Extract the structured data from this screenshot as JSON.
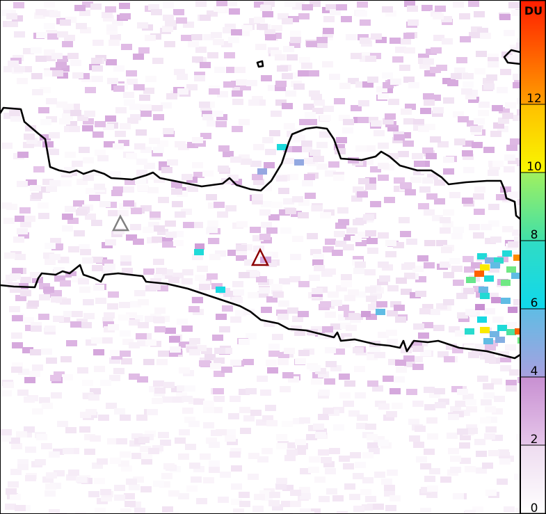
{
  "colorbar": {
    "unit": "DU",
    "range": [
      0,
      15
    ],
    "ticks": [
      "0",
      "2",
      "4",
      "6",
      "8",
      "10",
      "12"
    ],
    "stops": [
      {
        "value": 0,
        "color": "#ffffff"
      },
      {
        "value": 2,
        "color": "#eedcf0"
      },
      {
        "value": 2.01,
        "color": "#e6c6ea"
      },
      {
        "value": 4,
        "color": "#c890d2"
      },
      {
        "value": 4.01,
        "color": "#a8a0e0"
      },
      {
        "value": 6,
        "color": "#60bce4"
      },
      {
        "value": 6.01,
        "color": "#10d8ec"
      },
      {
        "value": 8,
        "color": "#30dcc4"
      },
      {
        "value": 8.01,
        "color": "#40e0a8"
      },
      {
        "value": 10,
        "color": "#a0f060"
      },
      {
        "value": 10.01,
        "color": "#f8f800"
      },
      {
        "value": 12,
        "color": "#ffc000"
      },
      {
        "value": 12.01,
        "color": "#ffa000"
      },
      {
        "value": 15,
        "color": "#ff2000"
      }
    ]
  },
  "markers": [
    {
      "name": "volcano-gray",
      "color": "#808080"
    },
    {
      "name": "volcano-red",
      "color": "#8b0000"
    }
  ],
  "coastline_color": "#000000"
}
